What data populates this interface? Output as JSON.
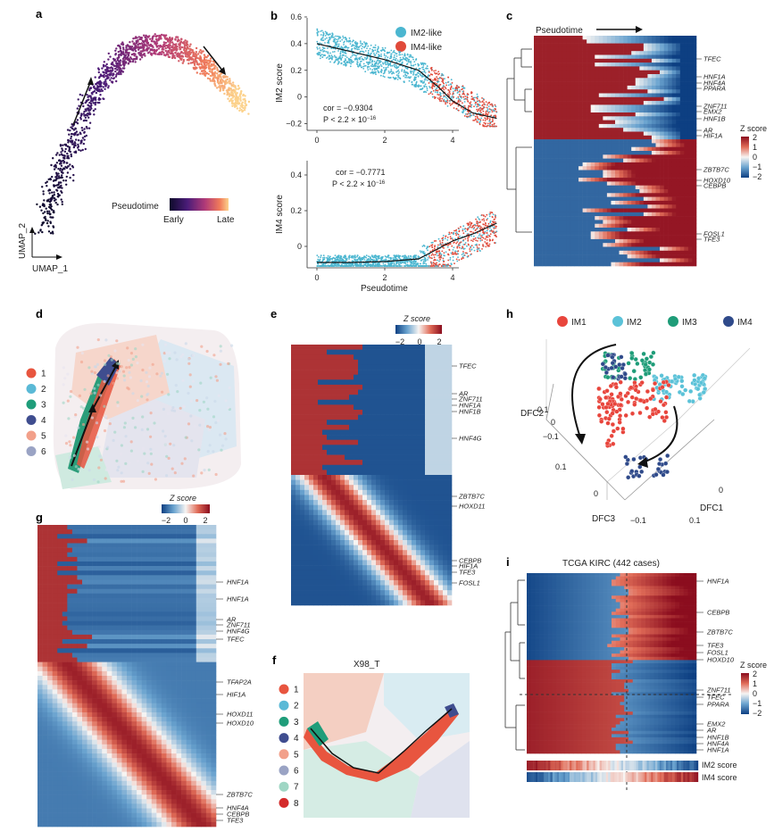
{
  "panel_letters": [
    "a",
    "b",
    "c",
    "d",
    "e",
    "f",
    "g",
    "h",
    "i"
  ],
  "a": {
    "legend_title": "Pseudotime",
    "legend_low": "Early",
    "legend_high": "Late",
    "axis_x": "UMAP_1",
    "axis_y": "UMAP_2"
  },
  "b": {
    "legend": [
      {
        "label": "IM2-like",
        "color": "#4bb6d0"
      },
      {
        "label": "IM4-like",
        "color": "#e04a3a"
      }
    ],
    "top": {
      "ylabel": "IM2 score",
      "cor": "cor = −0.9304",
      "p_base": "P < 2.2 × 10",
      "p_exp": "−16",
      "yticks": [
        "0.6",
        "0.4",
        "0.2",
        "0",
        "−0.2"
      ],
      "ytick_values": [
        0.6,
        0.4,
        0.2,
        0,
        -0.2
      ],
      "xticks": [
        "0",
        "2",
        "4"
      ]
    },
    "bottom": {
      "ylabel": "IM4 score",
      "cor": "cor = −0.7771",
      "p_base": "P < 2.2 × 10",
      "p_exp": "−16",
      "yticks": [
        "0.4",
        "0.2",
        "0"
      ],
      "ytick_values": [
        0.4,
        0.2,
        0
      ],
      "xticks": [
        "0",
        "2",
        "4"
      ],
      "xlabel": "Pseudotime"
    }
  },
  "c": {
    "header": "Pseudotime",
    "genes": [
      "TFEC",
      "HNF1A",
      "HNF4A",
      "PPARA",
      "ZNF711",
      "EMX2",
      "HNF1B",
      "AR",
      "HIF1A",
      "ZBTB7C",
      "HOXD10",
      "CEBPB",
      "FOSL1",
      "TFE3"
    ],
    "colorbar_title": "Z score",
    "colorbar_ticks": [
      "2",
      "1",
      "0",
      "−1",
      "−2"
    ]
  },
  "d": {
    "clusters": [
      {
        "label": "1",
        "color": "#e8553f"
      },
      {
        "label": "2",
        "color": "#5ab9d6"
      },
      {
        "label": "3",
        "color": "#1f9d7a"
      },
      {
        "label": "4",
        "color": "#3f4d8f"
      },
      {
        "label": "5",
        "color": "#f2a08a"
      },
      {
        "label": "6",
        "color": "#9aa3c4"
      }
    ]
  },
  "e": {
    "colorbar_title": "Z score",
    "colorbar_ticks": [
      "−2",
      "0",
      "2"
    ],
    "genes": [
      "TFEC",
      "AR",
      "ZNF711",
      "HNF1A",
      "HNF1B",
      "HNF4G",
      "ZBTB7C",
      "HOXD11",
      "CEBPB",
      "HIF1A",
      "TFE3",
      "FOSL1"
    ]
  },
  "f": {
    "title": "X98_T",
    "clusters": [
      {
        "label": "1",
        "color": "#e8553f"
      },
      {
        "label": "2",
        "color": "#5ab9d6"
      },
      {
        "label": "3",
        "color": "#1f9d7a"
      },
      {
        "label": "4",
        "color": "#3f4d8f"
      },
      {
        "label": "5",
        "color": "#f2a08a"
      },
      {
        "label": "6",
        "color": "#9aa3c4"
      },
      {
        "label": "7",
        "color": "#9fd6c4"
      },
      {
        "label": "8",
        "color": "#d42a2a"
      }
    ]
  },
  "g": {
    "colorbar_title": "Z score",
    "colorbar_ticks": [
      "−2",
      "0",
      "2"
    ],
    "genes": [
      "HNF1A",
      "HNF1A",
      "AR",
      "ZNF711",
      "HNF4G",
      "TFEC",
      "TFAP2A",
      "HIF1A",
      "HOXD11",
      "HOXD10",
      "ZBTB7C",
      "HNF4A",
      "CEBPB",
      "TFE3"
    ]
  },
  "h": {
    "legend": [
      {
        "label": "IM1",
        "color": "#e8453c"
      },
      {
        "label": "IM2",
        "color": "#5bc2d8"
      },
      {
        "label": "IM3",
        "color": "#1e9c78"
      },
      {
        "label": "IM4",
        "color": "#2f4a8a"
      }
    ],
    "axes": {
      "dfc1": "DFC1",
      "dfc2": "DFC2",
      "dfc3": "DFC3"
    },
    "ticks": [
      "0.1",
      "0",
      "−0.1",
      "0.1",
      "0",
      "−0.1",
      "0",
      "0.1"
    ]
  },
  "i": {
    "title": "TCGA KIRC (442 cases)",
    "genes": [
      "HNF1A",
      "CEBPB",
      "ZBTB7C",
      "TFE3",
      "FOSL1",
      "HOXD10",
      "ZNF711",
      "TFEC",
      "PPARA",
      "EMX2",
      "AR",
      "HNF1B",
      "HNF4A",
      "HNF1A"
    ],
    "colorbar_title": "Z score",
    "colorbar_ticks": [
      "2",
      "1",
      "0",
      "−1",
      "−2"
    ],
    "bars": [
      "IM2 score",
      "IM4 score"
    ]
  }
}
